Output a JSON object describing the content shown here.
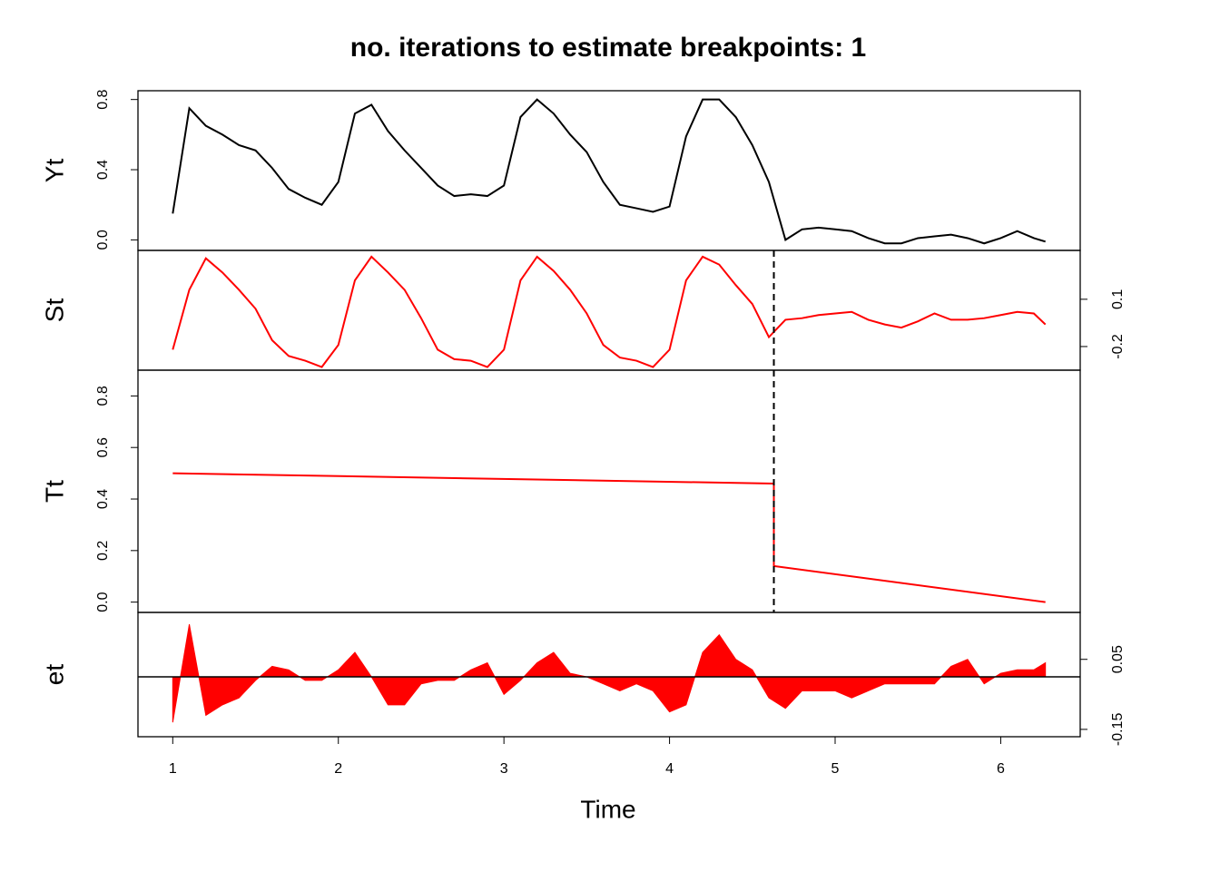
{
  "chart_data": [
    {
      "type": "line",
      "title": "no. iterations to estimate breakpoints: 1",
      "ylabel": "Yt",
      "color": "#000000",
      "axis_side": "left",
      "xlim": [
        0.79,
        6.48
      ],
      "ylim": [
        -0.06,
        0.85
      ],
      "yticks": [
        {
          "value": 0,
          "label": "0.0"
        },
        0.4,
        0.8
      ],
      "x": [
        1,
        1.1,
        1.2,
        1.3,
        1.4,
        1.5,
        1.6,
        1.7,
        1.8,
        1.9,
        2,
        2.1,
        2.2,
        2.3,
        2.4,
        2.5,
        2.6,
        2.7,
        2.8,
        2.9,
        3,
        3.1,
        3.2,
        3.3,
        3.4,
        3.5,
        3.6,
        3.7,
        3.8,
        3.9,
        4,
        4.1,
        4.2,
        4.3,
        4.4,
        4.5,
        4.6,
        4.7,
        4.8,
        4.9,
        5,
        5.1,
        5.2,
        5.3,
        5.4,
        5.5,
        5.6,
        5.7,
        5.8,
        5.9,
        6,
        6.1,
        6.2,
        6.27
      ],
      "values": [
        0.15,
        0.75,
        0.65,
        0.6,
        0.54,
        0.51,
        0.41,
        0.29,
        0.24,
        0.2,
        0.33,
        0.72,
        0.77,
        0.62,
        0.51,
        0.41,
        0.31,
        0.25,
        0.26,
        0.25,
        0.31,
        0.7,
        0.8,
        0.72,
        0.6,
        0.5,
        0.33,
        0.2,
        0.18,
        0.16,
        0.19,
        0.59,
        0.8,
        0.8,
        0.7,
        0.54,
        0.33,
        0.0,
        0.06,
        0.07,
        0.06,
        0.05,
        0.01,
        -0.02,
        -0.02,
        0.01,
        0.02,
        0.03,
        0.01,
        -0.02,
        0.01,
        0.05,
        0.01,
        -0.01
      ]
    },
    {
      "type": "line",
      "ylabel": "St",
      "color": "#ff0000",
      "axis_side": "right",
      "breakpoint": 4.63,
      "xlim": [
        0.79,
        6.48
      ],
      "ylim": [
        -0.35,
        0.41
      ],
      "yticks": [
        -0.2,
        0.1
      ],
      "x": [
        1,
        1.1,
        1.2,
        1.3,
        1.4,
        1.5,
        1.6,
        1.7,
        1.8,
        1.9,
        2,
        2.1,
        2.2,
        2.3,
        2.4,
        2.5,
        2.6,
        2.7,
        2.8,
        2.9,
        3,
        3.1,
        3.2,
        3.3,
        3.4,
        3.5,
        3.6,
        3.7,
        3.8,
        3.9,
        4,
        4.1,
        4.2,
        4.3,
        4.4,
        4.5,
        4.6,
        4.7,
        4.8,
        4.9,
        5,
        5.1,
        5.2,
        5.3,
        5.4,
        5.5,
        5.6,
        5.7,
        5.8,
        5.9,
        6,
        6.1,
        6.2,
        6.27
      ],
      "values": [
        -0.22,
        0.16,
        0.36,
        0.27,
        0.16,
        0.04,
        -0.16,
        -0.26,
        -0.29,
        -0.33,
        -0.19,
        0.22,
        0.37,
        0.27,
        0.16,
        -0.02,
        -0.22,
        -0.28,
        -0.29,
        -0.33,
        -0.22,
        0.22,
        0.37,
        0.28,
        0.16,
        0.01,
        -0.19,
        -0.27,
        -0.29,
        -0.33,
        -0.22,
        0.22,
        0.37,
        0.32,
        0.19,
        0.07,
        -0.14,
        -0.03,
        -0.02,
        0.0,
        0.01,
        0.02,
        -0.03,
        -0.06,
        -0.08,
        -0.04,
        0.01,
        -0.03,
        -0.03,
        -0.02,
        0.0,
        0.02,
        0.01,
        -0.06
      ]
    },
    {
      "type": "line",
      "ylabel": "Tt",
      "color": "#ff0000",
      "axis_side": "left",
      "breakpoint": 4.63,
      "xlim": [
        0.79,
        6.48
      ],
      "ylim": [
        -0.04,
        0.9
      ],
      "yticks": [
        {
          "value": 0,
          "label": "0.0"
        },
        0.2,
        0.4,
        0.6,
        0.8
      ],
      "x": [
        1,
        4.63,
        4.63,
        6.27
      ],
      "values": [
        0.5,
        0.46,
        0.14,
        0.0
      ]
    },
    {
      "type": "area",
      "ylabel": "et",
      "color": "#ff0000",
      "axis_side": "right",
      "zero_line": true,
      "xlabel": "Time",
      "xticks": [
        1,
        2,
        3,
        4,
        5,
        6
      ],
      "xlim": [
        0.79,
        6.48
      ],
      "ylim": [
        -0.171,
        0.184
      ],
      "yticks": [
        -0.15,
        0.05
      ],
      "x": [
        1,
        1.1,
        1.2,
        1.3,
        1.4,
        1.5,
        1.6,
        1.7,
        1.8,
        1.9,
        2,
        2.1,
        2.2,
        2.3,
        2.4,
        2.5,
        2.6,
        2.7,
        2.8,
        2.9,
        3,
        3.1,
        3.2,
        3.3,
        3.4,
        3.5,
        3.6,
        3.7,
        3.8,
        3.9,
        4,
        4.1,
        4.2,
        4.3,
        4.4,
        4.5,
        4.6,
        4.7,
        4.8,
        4.9,
        5,
        5.1,
        5.2,
        5.3,
        5.4,
        5.5,
        5.6,
        5.7,
        5.8,
        5.9,
        6,
        6.1,
        6.2,
        6.27
      ],
      "values": [
        -0.13,
        0.15,
        -0.11,
        -0.08,
        -0.06,
        -0.01,
        0.03,
        0.02,
        -0.01,
        -0.01,
        0.02,
        0.07,
        0.0,
        -0.08,
        -0.08,
        -0.02,
        -0.01,
        -0.01,
        0.02,
        0.04,
        -0.05,
        -0.01,
        0.04,
        0.07,
        0.01,
        0.0,
        -0.02,
        -0.04,
        -0.02,
        -0.04,
        -0.1,
        -0.08,
        0.07,
        0.12,
        0.05,
        0.02,
        -0.06,
        -0.09,
        -0.04,
        -0.04,
        -0.04,
        -0.06,
        -0.04,
        -0.02,
        -0.02,
        -0.02,
        -0.02,
        0.03,
        0.05,
        -0.02,
        0.01,
        0.02,
        0.02,
        0.04
      ]
    }
  ]
}
